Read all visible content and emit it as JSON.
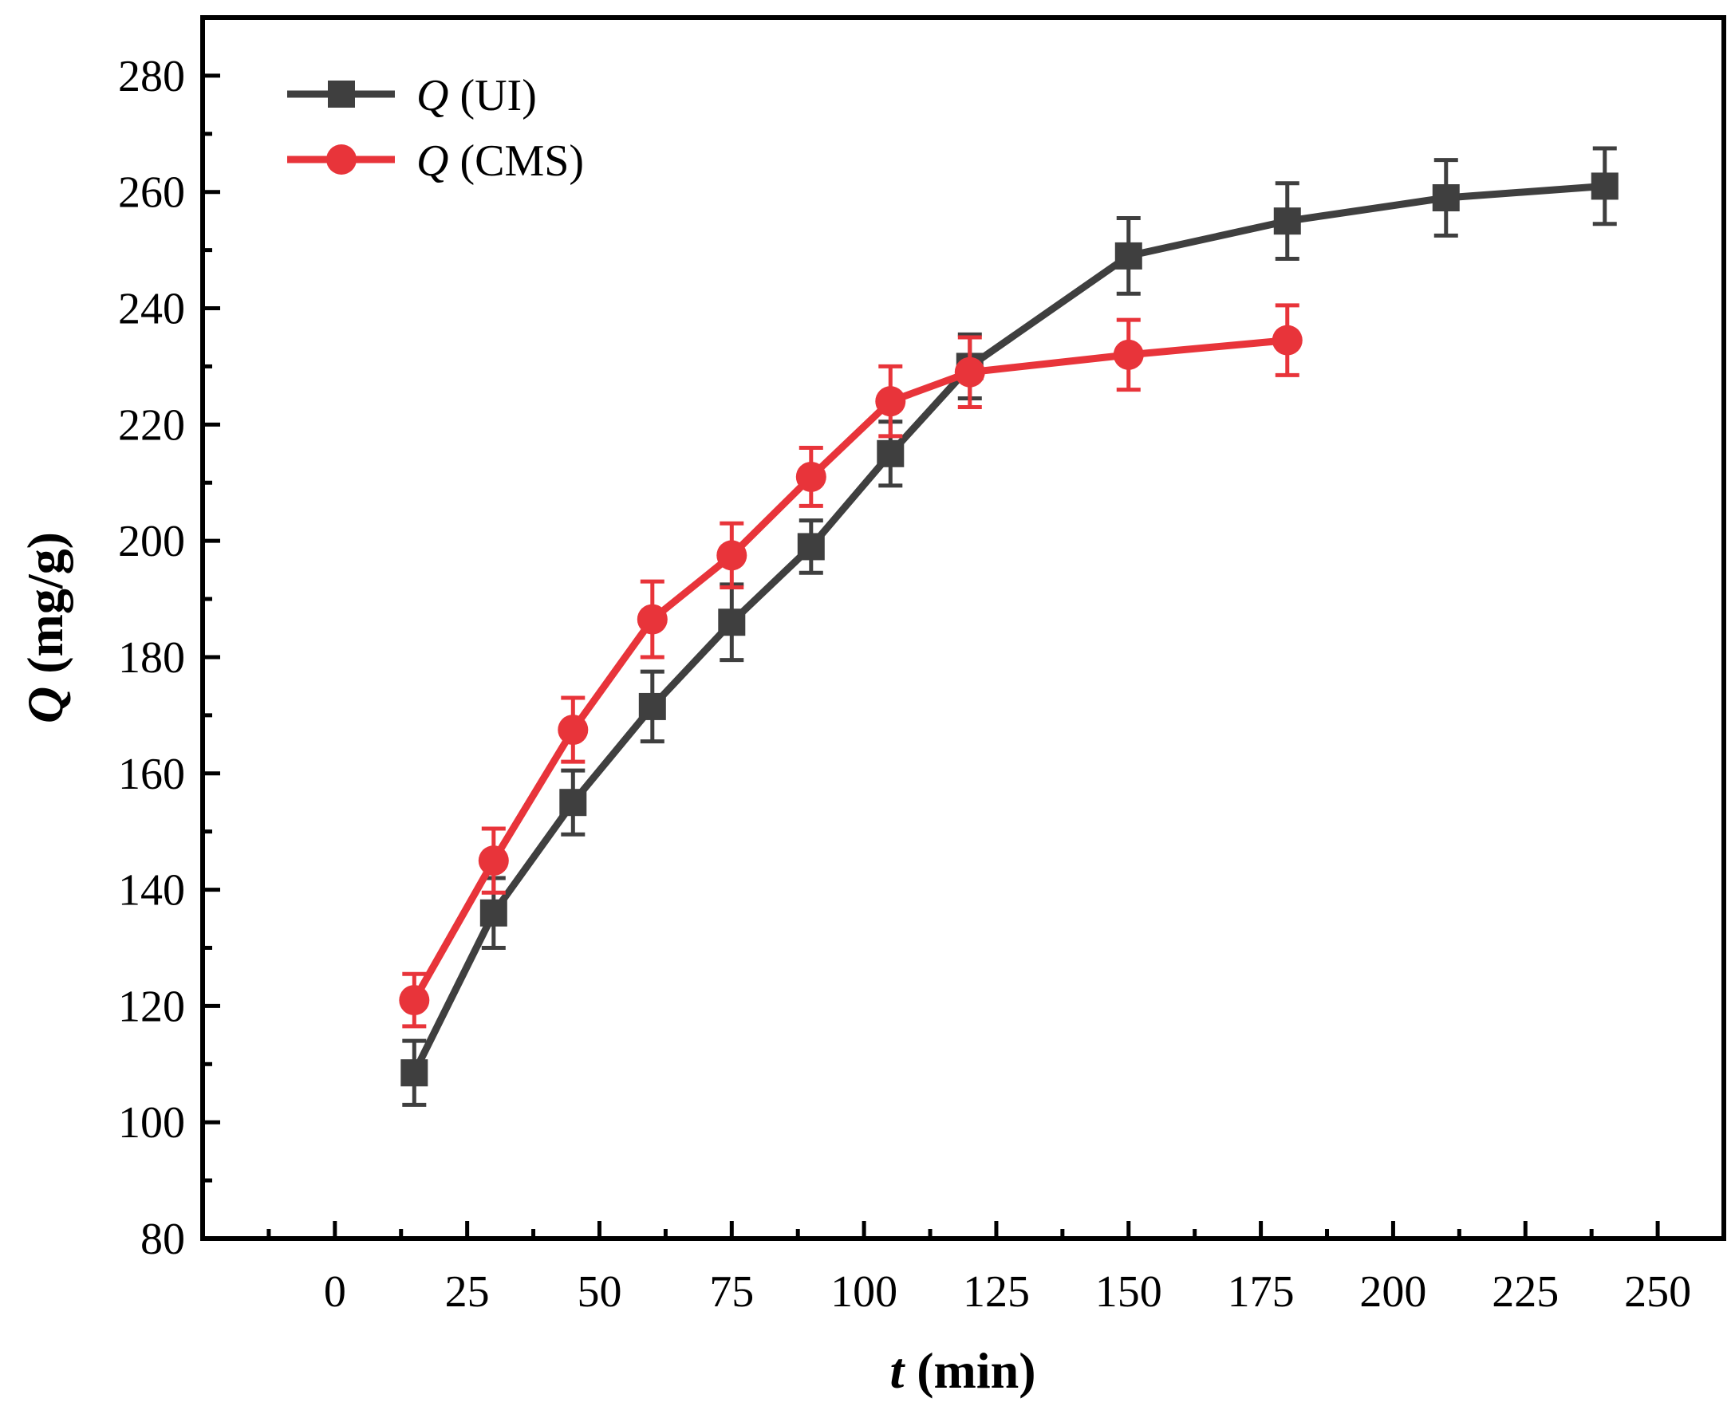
{
  "chart_data": {
    "type": "line",
    "title": "",
    "x": {
      "label_italic": "t",
      "label_rest": " (min)",
      "range": [
        -25,
        262.5
      ],
      "ticks": [
        0,
        25,
        50,
        75,
        100,
        125,
        150,
        175,
        200,
        225,
        250
      ],
      "tick_labels": [
        "0",
        "25",
        "50",
        "75",
        "100",
        "125",
        "150",
        "175",
        "200",
        "225",
        "250"
      ],
      "minor_step": 12.5
    },
    "y": {
      "label_italic": "Q",
      "label_rest": " (mg/g)",
      "range": [
        80,
        290
      ],
      "ticks": [
        80,
        100,
        120,
        140,
        160,
        180,
        200,
        220,
        240,
        260,
        280
      ],
      "tick_labels": [
        "80",
        "100",
        "120",
        "140",
        "160",
        "180",
        "200",
        "220",
        "240",
        "260",
        "280"
      ],
      "minor_step": 10
    },
    "grid": false,
    "legend_position": "top-left",
    "series": [
      {
        "name": "Q (UI)",
        "name_italic": "Q",
        "name_rest": " (UI)",
        "color": "#3f3f3f",
        "marker": "square",
        "points": [
          {
            "x": 15,
            "y": 108.5,
            "err": 5.5
          },
          {
            "x": 30,
            "y": 136,
            "err": 6
          },
          {
            "x": 45,
            "y": 155,
            "err": 5.5
          },
          {
            "x": 60,
            "y": 171.5,
            "err": 6
          },
          {
            "x": 75,
            "y": 186,
            "err": 6.5
          },
          {
            "x": 90,
            "y": 199,
            "err": 4.5
          },
          {
            "x": 105,
            "y": 215,
            "err": 5.5
          },
          {
            "x": 120,
            "y": 230,
            "err": 5.5
          },
          {
            "x": 150,
            "y": 249,
            "err": 6.5
          },
          {
            "x": 180,
            "y": 255,
            "err": 6.5
          },
          {
            "x": 210,
            "y": 259,
            "err": 6.5
          },
          {
            "x": 240,
            "y": 261,
            "err": 6.5
          }
        ]
      },
      {
        "name": "Q (CMS)",
        "name_italic": "Q",
        "name_rest": " (CMS)",
        "color": "#e8343a",
        "marker": "circle",
        "points": [
          {
            "x": 15,
            "y": 121,
            "err": 4.5
          },
          {
            "x": 30,
            "y": 145,
            "err": 5.5
          },
          {
            "x": 45,
            "y": 167.5,
            "err": 5.5
          },
          {
            "x": 60,
            "y": 186.5,
            "err": 6.5
          },
          {
            "x": 75,
            "y": 197.5,
            "err": 5.5
          },
          {
            "x": 90,
            "y": 211,
            "err": 5
          },
          {
            "x": 105,
            "y": 224,
            "err": 6
          },
          {
            "x": 120,
            "y": 229,
            "err": 6
          },
          {
            "x": 150,
            "y": 232,
            "err": 6
          },
          {
            "x": 180,
            "y": 234.5,
            "err": 6
          }
        ]
      }
    ]
  }
}
